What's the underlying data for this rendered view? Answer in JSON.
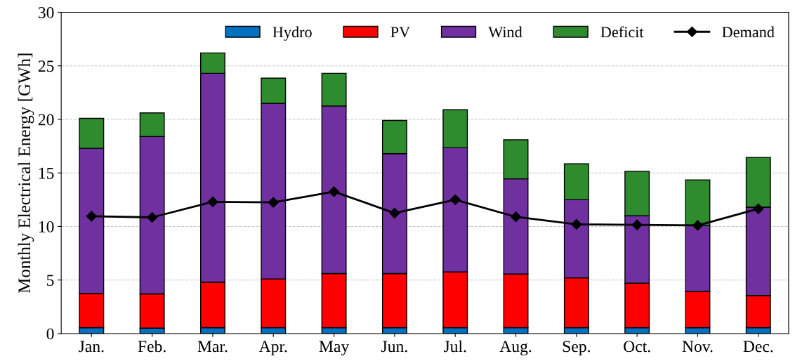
{
  "chart_data": {
    "type": "bar",
    "stacked": true,
    "ylabel": "Monthly Electrical Energy [GWh]",
    "categories": [
      "Jan.",
      "Feb.",
      "Mar.",
      "Apr.",
      "May",
      "Jun.",
      "Jul.",
      "Aug.",
      "Sep.",
      "Oct.",
      "Nov.",
      "Dec."
    ],
    "series": [
      {
        "name": "Hydro",
        "color": "#0070c0",
        "values": [
          0.55,
          0.5,
          0.55,
          0.55,
          0.55,
          0.55,
          0.55,
          0.55,
          0.55,
          0.55,
          0.55,
          0.55
        ]
      },
      {
        "name": "PV",
        "color": "#ff0000",
        "values": [
          3.2,
          3.2,
          4.25,
          4.55,
          5.05,
          5.05,
          5.2,
          5.0,
          4.65,
          4.15,
          3.4,
          3.0
        ]
      },
      {
        "name": "Wind",
        "color": "#7030a0",
        "values": [
          13.55,
          14.7,
          19.5,
          16.4,
          15.65,
          11.2,
          11.6,
          8.9,
          7.3,
          6.3,
          6.15,
          8.25
        ]
      },
      {
        "name": "Deficit",
        "color": "#2e8b2e",
        "values": [
          2.8,
          2.2,
          1.9,
          2.35,
          3.05,
          3.1,
          3.55,
          3.65,
          3.35,
          4.15,
          4.25,
          4.65
        ]
      },
      {
        "name": "Demand",
        "type": "line",
        "color": "#000000",
        "marker": "diamond",
        "values": [
          10.95,
          10.85,
          12.3,
          12.25,
          13.25,
          11.25,
          12.5,
          10.9,
          10.2,
          10.15,
          10.1,
          11.65
        ]
      }
    ],
    "ylim": [
      0,
      30
    ],
    "yticks": [
      0,
      5,
      10,
      15,
      20,
      25,
      30
    ],
    "grid": "y",
    "legend": "top right"
  }
}
